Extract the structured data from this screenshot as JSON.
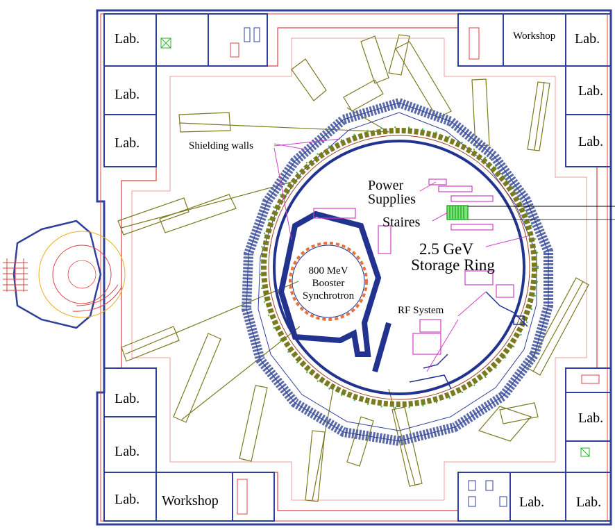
{
  "rooms": {
    "lab_top_left": "Lab.",
    "lab_left_2": "Lab.",
    "lab_left_3": "Lab.",
    "lab_left_4": "Lab.",
    "lab_left_5": "Lab.",
    "lab_bottom_left": "Lab.",
    "workshop_bottom": "Workshop",
    "workshop_top": "Workshop",
    "lab_top_right": "Lab.",
    "lab_right_2": "Lab.",
    "lab_right_3": "Lab.",
    "lab_right_4": "Lab.",
    "lab_bottom_right_1": "Lab.",
    "lab_bottom_right_2": "Lab."
  },
  "annotations": {
    "shielding_walls": "Shielding walls",
    "power": "Power",
    "supplies": "Supplies",
    "staires": "Staires",
    "ring_energy": "2.5 GeV",
    "ring_name": "Storage Ring",
    "booster_energy": "800 MeV",
    "booster_word": "Booster",
    "synchrotron": "Synchrotron",
    "rf_system": "RF System"
  },
  "colors": {
    "wall_blue": "#2f3f9a",
    "wall_red": "#e04040",
    "beamline_olive": "#7a7a20",
    "shield_hatch": "#5a6aa8",
    "ring_navy": "#22338f",
    "booster_orange": "#e8703a",
    "magenta": "#d040c8",
    "stairs_green": "#22b522",
    "magnet_green": "#1fbf4a"
  }
}
